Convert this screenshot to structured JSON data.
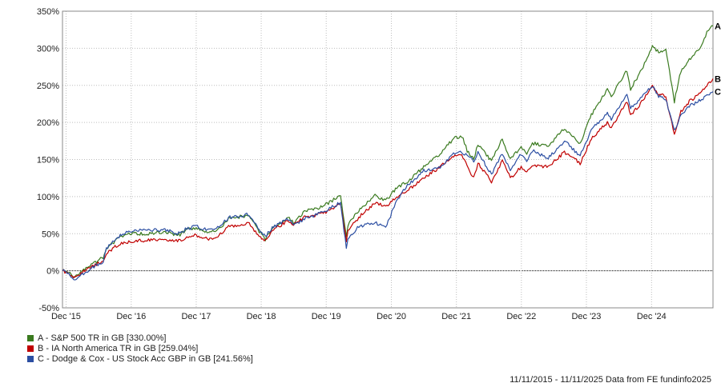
{
  "chart_data": {
    "type": "line",
    "ylim": [
      -50,
      350
    ],
    "yticks": [
      -50,
      0,
      50,
      100,
      150,
      200,
      250,
      300,
      350
    ],
    "ytick_labels": [
      "-50%",
      "0%",
      "50%",
      "100%",
      "150%",
      "200%",
      "250%",
      "300%",
      "350%"
    ],
    "x_start": "2015-11-11",
    "x_end": "2025-11-11",
    "xticks": [
      "2015-12-01",
      "2016-12-01",
      "2017-12-01",
      "2018-12-01",
      "2019-12-01",
      "2020-12-01",
      "2021-12-01",
      "2022-12-01",
      "2023-12-01",
      "2024-12-01"
    ],
    "xtick_labels": [
      "Dec '15",
      "Dec '16",
      "Dec '17",
      "Dec '18",
      "Dec '19",
      "Dec '20",
      "Dec '21",
      "Dec '22",
      "Dec '23",
      "Dec '24"
    ],
    "zero_line": true,
    "grid": true,
    "series": [
      {
        "name": "A - S&P 500 TR in GB [330.00%]",
        "end_label": "A",
        "color": "#3a7a1f",
        "points": [
          [
            "2015-11-11",
            0
          ],
          [
            "2015-12-15",
            -2
          ],
          [
            "2016-01-20",
            -8
          ],
          [
            "2016-02-10",
            -5
          ],
          [
            "2016-03-15",
            2
          ],
          [
            "2016-06-27",
            18
          ],
          [
            "2016-07-15",
            30
          ],
          [
            "2016-09-01",
            40
          ],
          [
            "2016-10-15",
            47
          ],
          [
            "2016-12-01",
            50
          ],
          [
            "2017-03-01",
            50
          ],
          [
            "2017-06-01",
            52
          ],
          [
            "2017-09-01",
            48
          ],
          [
            "2017-10-01",
            55
          ],
          [
            "2017-12-01",
            58
          ],
          [
            "2018-02-01",
            52
          ],
          [
            "2018-04-01",
            55
          ],
          [
            "2018-06-01",
            70
          ],
          [
            "2018-09-25",
            75
          ],
          [
            "2018-10-30",
            60
          ],
          [
            "2018-12-24",
            42
          ],
          [
            "2019-02-01",
            58
          ],
          [
            "2019-04-30",
            72
          ],
          [
            "2019-06-01",
            65
          ],
          [
            "2019-08-01",
            80
          ],
          [
            "2019-11-01",
            86
          ],
          [
            "2019-12-20",
            92
          ],
          [
            "2020-02-19",
            102
          ],
          [
            "2020-03-23",
            48
          ],
          [
            "2020-04-01",
            62
          ],
          [
            "2020-06-01",
            82
          ],
          [
            "2020-08-31",
            102
          ],
          [
            "2020-10-30",
            94
          ],
          [
            "2020-12-31",
            112
          ],
          [
            "2021-03-01",
            120
          ],
          [
            "2021-06-01",
            140
          ],
          [
            "2021-09-01",
            158
          ],
          [
            "2021-11-15",
            178
          ],
          [
            "2021-12-31",
            182
          ],
          [
            "2022-01-31",
            162
          ],
          [
            "2022-03-08",
            150
          ],
          [
            "2022-04-01",
            170
          ],
          [
            "2022-06-16",
            148
          ],
          [
            "2022-08-16",
            178
          ],
          [
            "2022-09-30",
            150
          ],
          [
            "2022-11-30",
            168
          ],
          [
            "2022-12-31",
            158
          ],
          [
            "2023-02-01",
            172
          ],
          [
            "2023-05-01",
            168
          ],
          [
            "2023-07-31",
            192
          ],
          [
            "2023-10-27",
            172
          ],
          [
            "2023-12-29",
            210
          ],
          [
            "2024-03-28",
            245
          ],
          [
            "2024-04-19",
            235
          ],
          [
            "2024-07-16",
            270
          ],
          [
            "2024-08-05",
            245
          ],
          [
            "2024-09-30",
            268
          ],
          [
            "2024-12-06",
            302
          ],
          [
            "2025-01-10",
            295
          ],
          [
            "2025-02-19",
            298
          ],
          [
            "2025-04-08",
            228
          ],
          [
            "2025-05-15",
            270
          ],
          [
            "2025-07-01",
            285
          ],
          [
            "2025-09-01",
            300
          ],
          [
            "2025-10-15",
            325
          ],
          [
            "2025-11-11",
            330
          ]
        ]
      },
      {
        "name": "B - IA North America TR in GB [259.04%]",
        "end_label": "B",
        "color": "#c00000",
        "points": [
          [
            "2015-11-11",
            0
          ],
          [
            "2015-12-15",
            -3
          ],
          [
            "2016-01-20",
            -9
          ],
          [
            "2016-02-10",
            -6
          ],
          [
            "2016-03-15",
            0
          ],
          [
            "2016-06-27",
            14
          ],
          [
            "2016-07-15",
            24
          ],
          [
            "2016-09-01",
            32
          ],
          [
            "2016-10-15",
            37
          ],
          [
            "2016-12-01",
            40
          ],
          [
            "2017-03-01",
            41
          ],
          [
            "2017-06-01",
            43
          ],
          [
            "2017-09-01",
            40
          ],
          [
            "2017-10-01",
            45
          ],
          [
            "2017-12-01",
            48
          ],
          [
            "2018-02-01",
            43
          ],
          [
            "2018-04-01",
            46
          ],
          [
            "2018-06-01",
            60
          ],
          [
            "2018-09-25",
            64
          ],
          [
            "2018-10-30",
            52
          ],
          [
            "2018-12-24",
            40
          ],
          [
            "2019-02-01",
            54
          ],
          [
            "2019-04-30",
            68
          ],
          [
            "2019-06-01",
            62
          ],
          [
            "2019-08-01",
            72
          ],
          [
            "2019-11-01",
            76
          ],
          [
            "2019-12-20",
            82
          ],
          [
            "2020-02-19",
            90
          ],
          [
            "2020-03-23",
            40
          ],
          [
            "2020-04-01",
            55
          ],
          [
            "2020-06-01",
            72
          ],
          [
            "2020-08-31",
            92
          ],
          [
            "2020-10-30",
            86
          ],
          [
            "2020-12-31",
            100
          ],
          [
            "2021-03-01",
            108
          ],
          [
            "2021-06-01",
            125
          ],
          [
            "2021-09-01",
            140
          ],
          [
            "2021-11-15",
            155
          ],
          [
            "2021-12-31",
            158
          ],
          [
            "2022-01-31",
            140
          ],
          [
            "2022-03-08",
            125
          ],
          [
            "2022-04-01",
            145
          ],
          [
            "2022-06-16",
            120
          ],
          [
            "2022-08-16",
            148
          ],
          [
            "2022-09-30",
            125
          ],
          [
            "2022-11-30",
            140
          ],
          [
            "2022-12-31",
            132
          ],
          [
            "2023-02-01",
            142
          ],
          [
            "2023-05-01",
            140
          ],
          [
            "2023-07-31",
            160
          ],
          [
            "2023-10-27",
            145
          ],
          [
            "2023-12-29",
            178
          ],
          [
            "2024-03-28",
            200
          ],
          [
            "2024-04-19",
            192
          ],
          [
            "2024-07-16",
            228
          ],
          [
            "2024-08-05",
            210
          ],
          [
            "2024-09-30",
            225
          ],
          [
            "2024-12-06",
            248
          ],
          [
            "2025-01-10",
            238
          ],
          [
            "2025-02-19",
            235
          ],
          [
            "2025-04-08",
            184
          ],
          [
            "2025-05-15",
            215
          ],
          [
            "2025-07-01",
            228
          ],
          [
            "2025-09-01",
            240
          ],
          [
            "2025-10-15",
            252
          ],
          [
            "2025-11-11",
            259
          ]
        ]
      },
      {
        "name": "C - Dodge & Cox - US Stock Acc GBP in GB [241.56%]",
        "end_label": "C",
        "color": "#2b4ea2",
        "points": [
          [
            "2015-11-11",
            0
          ],
          [
            "2015-12-15",
            -4
          ],
          [
            "2016-01-20",
            -12
          ],
          [
            "2016-02-10",
            -9
          ],
          [
            "2016-03-15",
            -2
          ],
          [
            "2016-06-27",
            12
          ],
          [
            "2016-07-15",
            30
          ],
          [
            "2016-09-01",
            42
          ],
          [
            "2016-10-15",
            50
          ],
          [
            "2016-12-01",
            54
          ],
          [
            "2017-03-01",
            55
          ],
          [
            "2017-06-01",
            55
          ],
          [
            "2017-09-01",
            50
          ],
          [
            "2017-10-01",
            56
          ],
          [
            "2017-12-01",
            60
          ],
          [
            "2018-02-01",
            55
          ],
          [
            "2018-04-01",
            58
          ],
          [
            "2018-06-01",
            72
          ],
          [
            "2018-09-25",
            76
          ],
          [
            "2018-10-30",
            62
          ],
          [
            "2018-12-24",
            46
          ],
          [
            "2019-02-01",
            58
          ],
          [
            "2019-04-30",
            70
          ],
          [
            "2019-06-01",
            62
          ],
          [
            "2019-08-01",
            70
          ],
          [
            "2019-11-01",
            78
          ],
          [
            "2019-12-20",
            84
          ],
          [
            "2020-02-19",
            92
          ],
          [
            "2020-03-23",
            30
          ],
          [
            "2020-04-01",
            42
          ],
          [
            "2020-06-01",
            60
          ],
          [
            "2020-08-31",
            65
          ],
          [
            "2020-10-30",
            58
          ],
          [
            "2020-12-31",
            95
          ],
          [
            "2021-03-01",
            115
          ],
          [
            "2021-06-01",
            135
          ],
          [
            "2021-09-01",
            140
          ],
          [
            "2021-11-15",
            158
          ],
          [
            "2021-12-31",
            160
          ],
          [
            "2022-01-31",
            155
          ],
          [
            "2022-03-08",
            148
          ],
          [
            "2022-04-01",
            160
          ],
          [
            "2022-06-16",
            130
          ],
          [
            "2022-08-16",
            158
          ],
          [
            "2022-09-30",
            135
          ],
          [
            "2022-11-30",
            158
          ],
          [
            "2022-12-31",
            148
          ],
          [
            "2023-02-01",
            162
          ],
          [
            "2023-05-01",
            152
          ],
          [
            "2023-07-31",
            175
          ],
          [
            "2023-10-27",
            155
          ],
          [
            "2023-12-29",
            190
          ],
          [
            "2024-03-28",
            212
          ],
          [
            "2024-04-19",
            205
          ],
          [
            "2024-07-16",
            238
          ],
          [
            "2024-08-05",
            220
          ],
          [
            "2024-09-30",
            232
          ],
          [
            "2024-12-06",
            250
          ],
          [
            "2025-01-10",
            235
          ],
          [
            "2025-02-19",
            232
          ],
          [
            "2025-04-08",
            188
          ],
          [
            "2025-05-15",
            210
          ],
          [
            "2025-07-01",
            222
          ],
          [
            "2025-09-01",
            230
          ],
          [
            "2025-10-15",
            238
          ],
          [
            "2025-11-11",
            241.56
          ]
        ]
      }
    ]
  },
  "legend": [
    {
      "label": "A - S&P 500 TR in GB [330.00%]",
      "color": "#3a7a1f"
    },
    {
      "label": "B - IA North America TR in GB [259.04%]",
      "color": "#c00000"
    },
    {
      "label": "C - Dodge & Cox - US Stock Acc GBP in GB [241.56%]",
      "color": "#2b4ea2"
    }
  ],
  "footer": "11/11/2015 - 11/11/2025 Data from FE fundinfo2025"
}
